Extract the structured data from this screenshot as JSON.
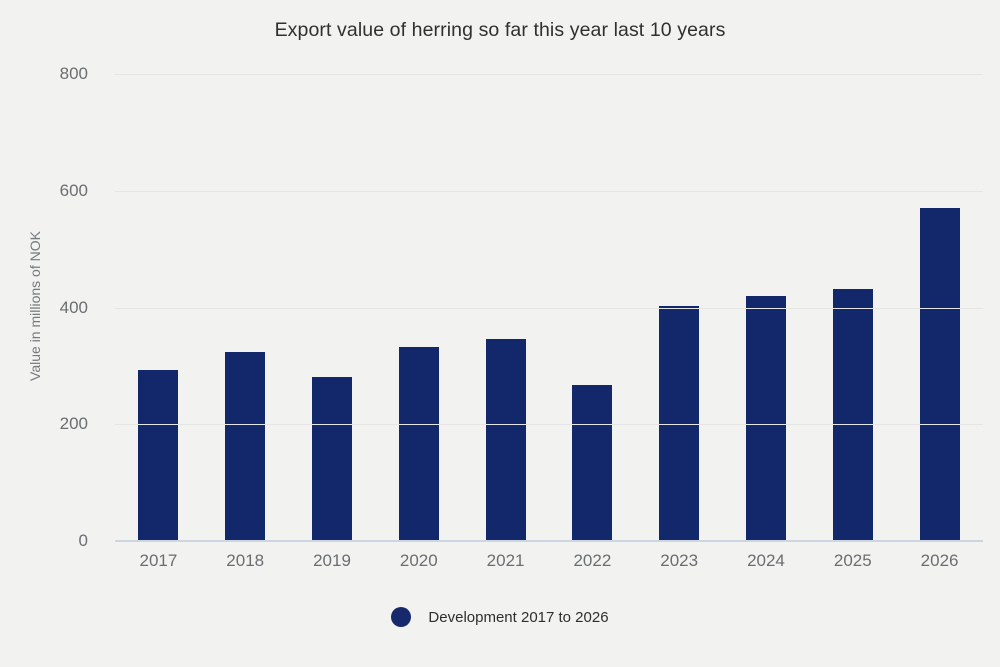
{
  "chart_data": {
    "type": "bar",
    "title": "Export value of herring so far this year last 10 years",
    "xlabel": "",
    "ylabel": "Value in millions of NOK",
    "categories": [
      "2017",
      "2018",
      "2019",
      "2020",
      "2021",
      "2022",
      "2023",
      "2024",
      "2025",
      "2026"
    ],
    "values": [
      293,
      323,
      281,
      333,
      346,
      267,
      403,
      420,
      431,
      570
    ],
    "ylim": [
      0,
      800
    ],
    "y_ticks": [
      800,
      600,
      400,
      200,
      0
    ],
    "grid": true,
    "legend_position": "bottom",
    "legend_label": "Development 2017 to 2026",
    "colors": {
      "bar": "#12286b",
      "legend_dot": "#16296d",
      "background": "#f2f2f0",
      "gridline": "#e5e6e4",
      "zero_axis_line": "#ccd6e2",
      "title_text": "#303030",
      "tick_text": "#6b6e70",
      "y_axis_title_text": "#767a7c",
      "legend_text": "#2f2f2f"
    }
  }
}
